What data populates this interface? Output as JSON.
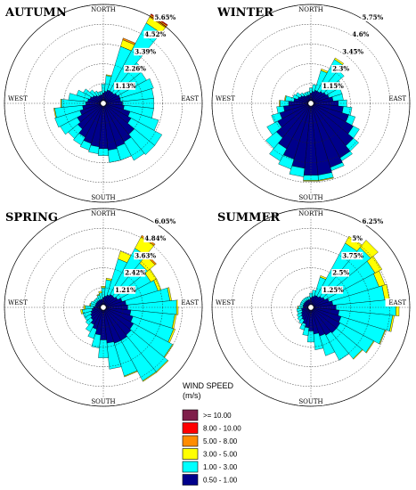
{
  "chart_data": [
    {
      "type": "wind-rose",
      "title": "AUTUMN",
      "directions": [
        "NORTH",
        "EAST",
        "SOUTH",
        "WEST"
      ],
      "ring_labels": [
        "1.13%",
        "2.26%",
        "3.39%",
        "4.52%",
        "5.65%"
      ],
      "max": 5.65,
      "petals_clockwise_from_north": [
        [
          0.6,
          0.5,
          0,
          0,
          0
        ],
        [
          0.7,
          0.9,
          0.05,
          0,
          0
        ],
        [
          0.8,
          2.6,
          0.4,
          0.1,
          0
        ],
        [
          0.8,
          4.4,
          0.4,
          0.15,
          0.05
        ],
        [
          0.8,
          2.2,
          0,
          0,
          0
        ],
        [
          0.9,
          1.9,
          0,
          0,
          0
        ],
        [
          1.0,
          2.0,
          0,
          0,
          0
        ],
        [
          1.0,
          1.9,
          0,
          0,
          0
        ],
        [
          1.1,
          1.8,
          0,
          0,
          0
        ],
        [
          1.2,
          1.7,
          0,
          0,
          0
        ],
        [
          1.6,
          1.7,
          0,
          0,
          0
        ],
        [
          1.8,
          2.0,
          0,
          0,
          0
        ],
        [
          2.3,
          1.5,
          0,
          0,
          0
        ],
        [
          2.5,
          1.2,
          0,
          0,
          0
        ],
        [
          2.6,
          0.8,
          0,
          0,
          0
        ],
        [
          2.7,
          0.7,
          0,
          0,
          0
        ],
        [
          2.6,
          0.4,
          0,
          0,
          0
        ],
        [
          2.5,
          0.4,
          0,
          0,
          0
        ],
        [
          2.4,
          0.4,
          0,
          0,
          0
        ],
        [
          2.2,
          0.5,
          0,
          0,
          0
        ],
        [
          1.9,
          0.7,
          0,
          0,
          0
        ],
        [
          1.7,
          1.1,
          0,
          0,
          0
        ],
        [
          1.4,
          1.5,
          0,
          0,
          0
        ],
        [
          1.2,
          1.6,
          0.05,
          0,
          0
        ],
        [
          1.0,
          1.4,
          0.05,
          0,
          0
        ],
        [
          0.9,
          1.1,
          0,
          0,
          0
        ],
        [
          0.8,
          0.8,
          0,
          0,
          0
        ],
        [
          0.7,
          0.6,
          0,
          0,
          0
        ],
        [
          0.6,
          0.4,
          0,
          0,
          0
        ],
        [
          0.5,
          0.3,
          0,
          0,
          0
        ],
        [
          0.5,
          0.2,
          0,
          0,
          0
        ],
        [
          0.5,
          0.2,
          0,
          0,
          0
        ]
      ]
    },
    {
      "type": "wind-rose",
      "title": "WINTER",
      "directions": [
        "NORTH",
        "EAST",
        "SOUTH",
        "WEST"
      ],
      "ring_labels": [
        "1.15%",
        "2.3%",
        "3.45%",
        "4.6%",
        "5.75%"
      ],
      "max": 5.75,
      "petals_clockwise_from_north": [
        [
          0.6,
          0.3,
          0,
          0,
          0
        ],
        [
          0.7,
          0.4,
          0,
          0,
          0
        ],
        [
          0.8,
          1.2,
          0.1,
          0,
          0
        ],
        [
          0.8,
          2.1,
          0.1,
          0,
          0
        ],
        [
          0.9,
          1.6,
          0,
          0,
          0
        ],
        [
          1.0,
          1.1,
          0,
          0,
          0
        ],
        [
          1.1,
          0.8,
          0,
          0,
          0
        ],
        [
          1.3,
          0.6,
          0,
          0,
          0
        ],
        [
          1.6,
          0.5,
          0,
          0,
          0
        ],
        [
          1.9,
          0.5,
          0,
          0,
          0
        ],
        [
          2.3,
          0.4,
          0,
          0,
          0
        ],
        [
          2.8,
          0.4,
          0,
          0,
          0
        ],
        [
          3.2,
          0.4,
          0,
          0,
          0
        ],
        [
          3.6,
          0.2,
          0,
          0,
          0
        ],
        [
          3.9,
          0.2,
          0,
          0,
          0
        ],
        [
          4.2,
          0.3,
          0.05,
          0,
          0
        ],
        [
          4.2,
          0.3,
          0.05,
          0,
          0
        ],
        [
          3.8,
          0.5,
          0,
          0,
          0
        ],
        [
          3.4,
          0.6,
          0,
          0,
          0
        ],
        [
          3.0,
          0.8,
          0,
          0,
          0
        ],
        [
          2.6,
          0.8,
          0,
          0,
          0
        ],
        [
          2.2,
          0.7,
          0,
          0,
          0
        ],
        [
          1.9,
          0.5,
          0,
          0,
          0
        ],
        [
          1.6,
          0.4,
          0,
          0,
          0
        ],
        [
          1.3,
          0.5,
          0.05,
          0,
          0
        ],
        [
          1.0,
          0.5,
          0.05,
          0,
          0
        ],
        [
          0.8,
          0.3,
          0,
          0,
          0
        ],
        [
          0.7,
          0.3,
          0,
          0,
          0
        ],
        [
          0.6,
          0.2,
          0,
          0,
          0
        ],
        [
          0.5,
          0.2,
          0,
          0,
          0
        ],
        [
          0.5,
          0.2,
          0,
          0,
          0
        ],
        [
          0.5,
          0.2,
          0,
          0,
          0
        ]
      ]
    },
    {
      "type": "wind-rose",
      "title": "SPRING",
      "directions": [
        "NORTH",
        "EAST",
        "SOUTH",
        "WEST"
      ],
      "ring_labels": [
        "1.21%",
        "2.42%",
        "3.63%",
        "4.84%",
        "6.05%"
      ],
      "max": 6.05,
      "petals_clockwise_from_north": [
        [
          0.6,
          0.6,
          0.1,
          0,
          0
        ],
        [
          0.7,
          1.0,
          0.1,
          0,
          0
        ],
        [
          0.8,
          2.3,
          0.5,
          0,
          0
        ],
        [
          0.9,
          3.2,
          0.8,
          0.1,
          0
        ],
        [
          0.9,
          2.6,
          0.6,
          0.1,
          0
        ],
        [
          1.0,
          2.3,
          0.4,
          0,
          0
        ],
        [
          1.2,
          2.3,
          0.2,
          0,
          0
        ],
        [
          1.4,
          2.7,
          0.1,
          0,
          0
        ],
        [
          1.5,
          3.0,
          0.1,
          0,
          0
        ],
        [
          1.7,
          2.7,
          0.1,
          0,
          0
        ],
        [
          1.9,
          2.6,
          0.1,
          0,
          0
        ],
        [
          2.1,
          2.7,
          0.05,
          0,
          0
        ],
        [
          2.2,
          2.9,
          0.05,
          0,
          0
        ],
        [
          2.3,
          2.8,
          0.05,
          0,
          0
        ],
        [
          2.3,
          2.1,
          0.05,
          0,
          0
        ],
        [
          2.2,
          1.6,
          0,
          0,
          0
        ],
        [
          2.0,
          1.1,
          0,
          0,
          0
        ],
        [
          1.7,
          0.8,
          0,
          0,
          0
        ],
        [
          1.4,
          0.6,
          0,
          0,
          0
        ],
        [
          1.2,
          0.5,
          0,
          0,
          0
        ],
        [
          1.0,
          0.4,
          0,
          0,
          0
        ],
        [
          0.9,
          0.4,
          0,
          0,
          0
        ],
        [
          0.8,
          0.5,
          0,
          0,
          0
        ],
        [
          0.7,
          0.6,
          0.1,
          0,
          0
        ],
        [
          0.6,
          0.5,
          0.1,
          0,
          0
        ],
        [
          0.5,
          0.3,
          0.05,
          0,
          0
        ],
        [
          0.5,
          0.3,
          0,
          0,
          0
        ],
        [
          0.5,
          0.2,
          0,
          0,
          0
        ],
        [
          0.5,
          0.2,
          0,
          0,
          0
        ],
        [
          0.5,
          0.2,
          0,
          0,
          0
        ],
        [
          0.5,
          0.3,
          0.05,
          0,
          0
        ],
        [
          0.5,
          0.4,
          0.1,
          0,
          0
        ]
      ]
    },
    {
      "type": "wind-rose",
      "title": "SUMMER",
      "directions": [
        "NORTH",
        "EAST",
        "SOUTH",
        "WEST"
      ],
      "ring_labels": [
        "1.25%",
        "2.5%",
        "3.75%",
        "5%",
        "6.25%"
      ],
      "max": 6.25,
      "petals_clockwise_from_north": [
        [
          0.6,
          0.3,
          0,
          0,
          0
        ],
        [
          0.7,
          0.4,
          0,
          0,
          0
        ],
        [
          0.8,
          1.2,
          0.1,
          0,
          0
        ],
        [
          0.8,
          3.8,
          0.5,
          0,
          0
        ],
        [
          0.9,
          4.0,
          0.6,
          0,
          0
        ],
        [
          1.0,
          3.6,
          0.5,
          0,
          0
        ],
        [
          1.2,
          3.3,
          0.4,
          0,
          0
        ],
        [
          1.4,
          3.3,
          0.3,
          0,
          0
        ],
        [
          1.6,
          3.8,
          0.2,
          0,
          0
        ],
        [
          1.8,
          3.4,
          0.1,
          0,
          0
        ],
        [
          2.0,
          2.9,
          0.05,
          0,
          0
        ],
        [
          2.1,
          2.4,
          0.05,
          0,
          0
        ],
        [
          2.1,
          2.1,
          0.05,
          0,
          0
        ],
        [
          2.0,
          1.8,
          0,
          0,
          0
        ],
        [
          1.9,
          1.3,
          0,
          0,
          0
        ],
        [
          1.7,
          1.0,
          0,
          0,
          0
        ],
        [
          1.5,
          0.7,
          0,
          0,
          0
        ],
        [
          1.3,
          0.5,
          0,
          0,
          0
        ],
        [
          1.1,
          0.4,
          0,
          0,
          0
        ],
        [
          0.9,
          0.3,
          0,
          0,
          0
        ],
        [
          0.8,
          0.3,
          0,
          0,
          0
        ],
        [
          0.7,
          0.3,
          0,
          0,
          0
        ],
        [
          0.6,
          0.3,
          0,
          0,
          0
        ],
        [
          0.6,
          0.3,
          0,
          0,
          0
        ],
        [
          0.5,
          0.3,
          0.05,
          0,
          0
        ],
        [
          0.5,
          0.2,
          0,
          0,
          0
        ],
        [
          0.5,
          0.2,
          0,
          0,
          0
        ],
        [
          0.5,
          0.2,
          0,
          0,
          0
        ],
        [
          0.5,
          0.2,
          0,
          0,
          0
        ],
        [
          0.5,
          0.2,
          0,
          0,
          0
        ],
        [
          0.5,
          0.2,
          0,
          0,
          0
        ],
        [
          0.5,
          0.2,
          0,
          0,
          0
        ]
      ]
    }
  ],
  "legend": {
    "title_line1": "WIND SPEED",
    "title_line2": "(m/s)",
    "classes": [
      {
        "label": ">= 10.00",
        "color": "#7f1f4a"
      },
      {
        "label": "8.00 - 10.00",
        "color": "#ff0000"
      },
      {
        "label": "5.00 - 8.00",
        "color": "#ff8c00"
      },
      {
        "label": "3.00 - 5.00",
        "color": "#ffff00"
      },
      {
        "label": "1.00 - 3.00",
        "color": "#00ffff"
      },
      {
        "label": "0.50 - 1.00",
        "color": "#00008b"
      }
    ]
  }
}
